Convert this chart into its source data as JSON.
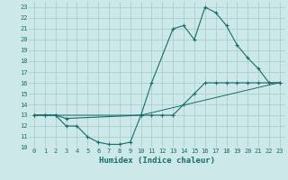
{
  "xlabel": "Humidex (Indice chaleur)",
  "background_color": "#cce8e8",
  "grid_color": "#aacece",
  "line_color": "#1a6b6b",
  "xlim": [
    -0.5,
    23.5
  ],
  "ylim": [
    10,
    23.5
  ],
  "xticks": [
    0,
    1,
    2,
    3,
    4,
    5,
    6,
    7,
    8,
    9,
    10,
    11,
    12,
    13,
    14,
    15,
    16,
    17,
    18,
    19,
    20,
    21,
    22,
    23
  ],
  "yticks": [
    10,
    11,
    12,
    13,
    14,
    15,
    16,
    17,
    18,
    19,
    20,
    21,
    22,
    23
  ],
  "curve1_x": [
    0,
    1,
    2,
    3,
    10,
    11,
    13,
    14,
    15,
    16,
    17,
    18,
    19,
    20,
    21,
    22,
    23
  ],
  "curve1_y": [
    13,
    13,
    13,
    12.7,
    13,
    16,
    21,
    21.3,
    20,
    23,
    22.5,
    21.3,
    19.5,
    18.3,
    17.3,
    16,
    16
  ],
  "curve2_x": [
    0,
    1,
    2,
    3,
    4,
    5,
    6,
    7,
    8,
    9,
    10,
    11,
    12,
    13,
    14,
    15,
    16,
    17,
    18,
    19,
    20,
    21,
    22,
    23
  ],
  "curve2_y": [
    13,
    13,
    13,
    12,
    12,
    11,
    10.5,
    10.3,
    10.3,
    10.5,
    13,
    13,
    13,
    13,
    14,
    15,
    16,
    16,
    16,
    16,
    16,
    16,
    16,
    16
  ],
  "curve3_x": [
    0,
    10,
    22,
    23
  ],
  "curve3_y": [
    13,
    13,
    15.8,
    16
  ],
  "xlabel_fontsize": 6.5,
  "tick_fontsize": 5.0
}
